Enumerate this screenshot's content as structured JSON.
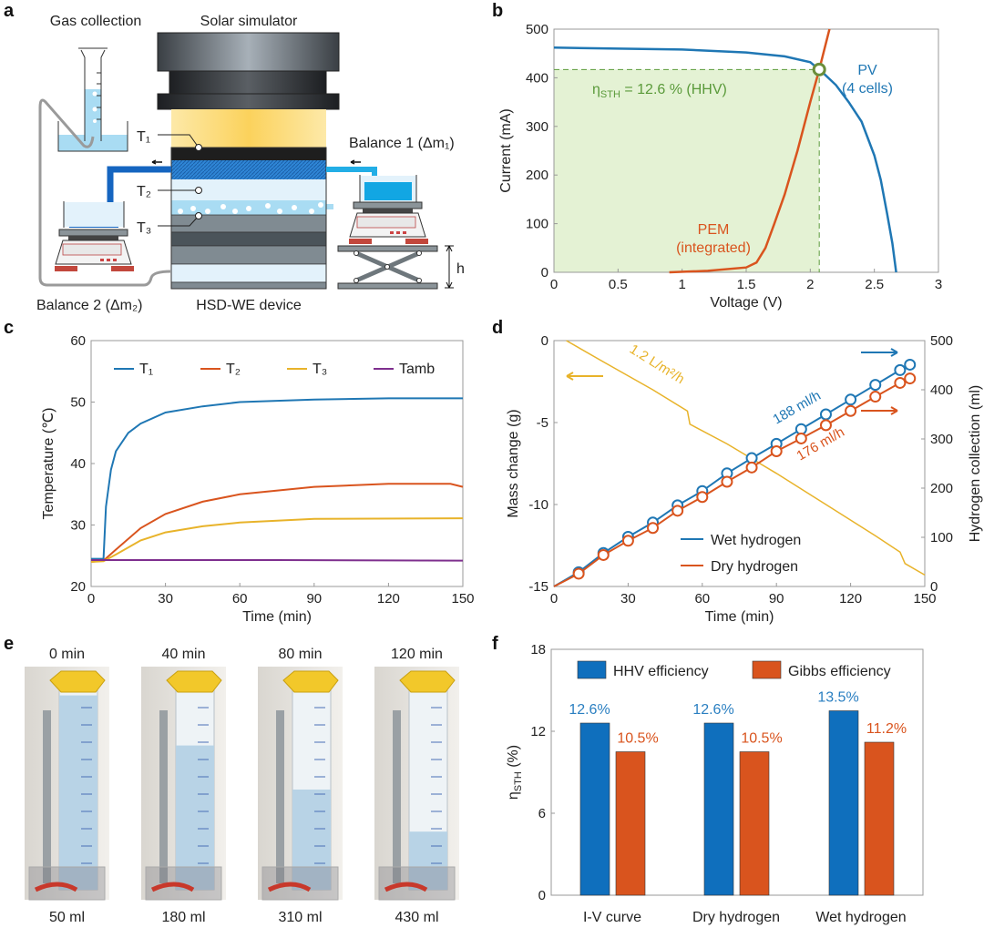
{
  "panel_letters": [
    "a",
    "b",
    "c",
    "d",
    "e",
    "f"
  ],
  "diagram": {
    "gas_collection": "Gas collection",
    "solar_simulator": "Solar simulator",
    "t1": "T₁",
    "t2": "T₂",
    "t3": "T₃",
    "balance1": "Balance 1 (Δm₁)",
    "balance2": "Balance 2 (Δm₂)",
    "device": "HSD-WE device",
    "h": "h"
  },
  "chart_data": [
    {
      "id": "b",
      "type": "line",
      "xlabel": "Voltage (V)",
      "ylabel": "Current (mA)",
      "xlim": [
        0,
        3
      ],
      "ylim": [
        0,
        500
      ],
      "xticks": [
        "0",
        "0.5",
        "1",
        "1.5",
        "2",
        "2.5",
        "3"
      ],
      "xtick_values": [
        0,
        0.5,
        1,
        1.5,
        2,
        2.5,
        3
      ],
      "yticks": [
        "0",
        "100",
        "200",
        "300",
        "400",
        "500"
      ],
      "ytick_values": [
        0,
        100,
        200,
        300,
        400,
        500
      ],
      "operating_point": [
        2.07,
        417
      ],
      "annotation": {
        "eta": "η",
        "sub": "STH",
        "rest": " = 12.6 % (HHV)"
      },
      "series": [
        {
          "name": "PV (4 cells)",
          "label1": "PV",
          "label2": "(4 cells)",
          "color": "#1f77b4",
          "points": [
            [
              0,
              462
            ],
            [
              0.5,
              460
            ],
            [
              1,
              458
            ],
            [
              1.5,
              452
            ],
            [
              1.8,
              444
            ],
            [
              2,
              432
            ],
            [
              2.1,
              410
            ],
            [
              2.2,
              385
            ],
            [
              2.3,
              350
            ],
            [
              2.4,
              310
            ],
            [
              2.5,
              240
            ],
            [
              2.55,
              190
            ],
            [
              2.6,
              120
            ],
            [
              2.64,
              60
            ],
            [
              2.67,
              0
            ]
          ]
        },
        {
          "name": "PEM (integrated)",
          "label1": "PEM",
          "label2": "(integrated)",
          "color": "#d9541e",
          "points": [
            [
              0.9,
              0
            ],
            [
              1.2,
              3
            ],
            [
              1.5,
              10
            ],
            [
              1.58,
              20
            ],
            [
              1.65,
              50
            ],
            [
              1.72,
              100
            ],
            [
              1.8,
              160
            ],
            [
              1.9,
              250
            ],
            [
              2.0,
              350
            ],
            [
              2.07,
              417
            ],
            [
              2.15,
              500
            ]
          ]
        }
      ]
    },
    {
      "id": "c",
      "type": "line",
      "xlabel": "Time (min)",
      "ylabel": "Temperature (℃)",
      "xlim": [
        0,
        150
      ],
      "ylim": [
        20,
        60
      ],
      "xticks": [
        "0",
        "30",
        "60",
        "90",
        "120",
        "150"
      ],
      "xtick_values": [
        0,
        30,
        60,
        90,
        120,
        150
      ],
      "yticks": [
        "20",
        "30",
        "40",
        "50",
        "60"
      ],
      "ytick_values": [
        20,
        30,
        40,
        50,
        60
      ],
      "legend": "top",
      "series": [
        {
          "name": "T₁",
          "color": "#1f77b4",
          "points": [
            [
              0,
              24.5
            ],
            [
              5,
              24.5
            ],
            [
              6,
              33
            ],
            [
              8,
              39
            ],
            [
              10,
              42
            ],
            [
              15,
              45
            ],
            [
              20,
              46.5
            ],
            [
              30,
              48.3
            ],
            [
              45,
              49.3
            ],
            [
              60,
              50
            ],
            [
              90,
              50.4
            ],
            [
              120,
              50.6
            ],
            [
              150,
              50.6
            ]
          ]
        },
        {
          "name": "T₂",
          "color": "#d9541e",
          "points": [
            [
              0,
              24
            ],
            [
              5,
              24.2
            ],
            [
              10,
              26
            ],
            [
              20,
              29.5
            ],
            [
              30,
              31.8
            ],
            [
              45,
              33.8
            ],
            [
              60,
              35
            ],
            [
              90,
              36.2
            ],
            [
              120,
              36.7
            ],
            [
              145,
              36.7
            ],
            [
              150,
              36.2
            ]
          ]
        },
        {
          "name": "T₃",
          "color": "#e8b32a",
          "points": [
            [
              0,
              24
            ],
            [
              5,
              24.1
            ],
            [
              10,
              25.2
            ],
            [
              20,
              27.5
            ],
            [
              30,
              28.8
            ],
            [
              45,
              29.8
            ],
            [
              60,
              30.4
            ],
            [
              90,
              31
            ],
            [
              150,
              31.1
            ]
          ]
        },
        {
          "name": "Tamb",
          "color": "#7e2f8e",
          "points": [
            [
              0,
              24.3
            ],
            [
              75,
              24.3
            ],
            [
              150,
              24.2
            ]
          ]
        }
      ]
    },
    {
      "id": "d",
      "type": "line",
      "xlabel": "Time (min)",
      "ylabel": "Mass change (g)",
      "y2label": "Hydrogen collection (ml)",
      "xlim": [
        0,
        150
      ],
      "ylim": [
        -15,
        0
      ],
      "y2lim": [
        0,
        500
      ],
      "xticks": [
        "0",
        "30",
        "60",
        "90",
        "120",
        "150"
      ],
      "xtick_values": [
        0,
        30,
        60,
        90,
        120,
        150
      ],
      "yticks": [
        "-15",
        "-10",
        "-5",
        "0"
      ],
      "ytick_values": [
        -15,
        -10,
        -5,
        0
      ],
      "y2ticks": [
        "0",
        "100",
        "200",
        "300",
        "400",
        "500"
      ],
      "y2tick_values": [
        0,
        100,
        200,
        300,
        400,
        500
      ],
      "mass_series": {
        "name": "Mass change",
        "label": "1.2 L/m²/h",
        "color": "#e8b32a",
        "points": [
          [
            5,
            0
          ],
          [
            20,
            -1.3
          ],
          [
            40,
            -3
          ],
          [
            54,
            -4.3
          ],
          [
            55,
            -5.1
          ],
          [
            70,
            -6.3
          ],
          [
            90,
            -8.1
          ],
          [
            110,
            -10
          ],
          [
            130,
            -11.9
          ],
          [
            140,
            -12.9
          ],
          [
            142,
            -13.6
          ],
          [
            150,
            -14.3
          ]
        ]
      },
      "series": [
        {
          "name": "Wet hydrogen",
          "rate": "188 ml/h",
          "color": "#1f77b4",
          "x": [
            0,
            10,
            20,
            30,
            40,
            50,
            60,
            70,
            80,
            90,
            100,
            110,
            120,
            130,
            140,
            144
          ],
          "y": [
            0,
            29,
            68,
            101,
            130,
            165,
            194,
            230,
            261,
            290,
            320,
            350,
            380,
            410,
            440,
            451
          ]
        },
        {
          "name": "Dry hydrogen",
          "rate": "176 ml/h",
          "color": "#d9541e",
          "x": [
            0,
            10,
            20,
            30,
            40,
            50,
            60,
            70,
            80,
            90,
            100,
            110,
            120,
            130,
            140,
            144
          ],
          "y": [
            0,
            26,
            64,
            93,
            119,
            154,
            182,
            213,
            242,
            275,
            301,
            328,
            357,
            386,
            414,
            423
          ]
        }
      ]
    },
    {
      "id": "f",
      "type": "bar",
      "ylabel_eta": "η",
      "ylabel_sub": "STH",
      "ylabel_rest": "  (%)",
      "ylim": [
        0,
        18
      ],
      "yticks": [
        "0",
        "6",
        "12",
        "18"
      ],
      "ytick_values": [
        0,
        6,
        12,
        18
      ],
      "categories": [
        "I-V curve",
        "Dry hydrogen",
        "Wet hydrogen"
      ],
      "series": [
        {
          "name": "HHV efficiency",
          "color": "#0f6fbd",
          "label_color": "#2a7fc1",
          "values": [
            12.6,
            12.6,
            13.5
          ],
          "labels": [
            "12.6%",
            "12.6%",
            "13.5%"
          ]
        },
        {
          "name": "Gibbs efficiency",
          "color": "#d9541e",
          "label_color": "#d9541e",
          "values": [
            10.5,
            10.5,
            11.2
          ],
          "labels": [
            "10.5%",
            "10.5%",
            "11.2%"
          ]
        }
      ]
    }
  ],
  "photos": [
    {
      "time": "0 min",
      "volume": "50 ml",
      "fill": 0.97
    },
    {
      "time": "40 min",
      "volume": "180 ml",
      "fill": 0.72
    },
    {
      "time": "80 min",
      "volume": "310 ml",
      "fill": 0.5
    },
    {
      "time": "120 min",
      "volume": "430 ml",
      "fill": 0.29
    }
  ]
}
